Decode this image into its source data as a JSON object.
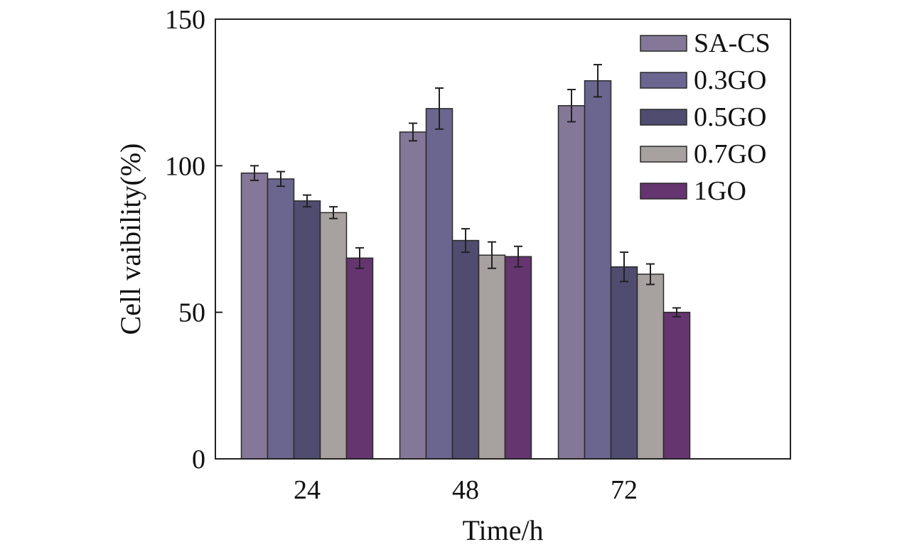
{
  "chart_data": {
    "type": "bar",
    "title": "",
    "xlabel": "Time/h",
    "ylabel": "Cell vaibility(%)",
    "categories": [
      "24",
      "48",
      "72"
    ],
    "ylim": [
      0,
      150
    ],
    "yticks": [
      "0",
      "50",
      "100",
      "150"
    ],
    "grid": false,
    "legend_position": "top-right",
    "error_bars": true,
    "series": [
      {
        "name": "SA-CS",
        "color": "#857797",
        "values": [
          97.5,
          111.5,
          120.5
        ],
        "errors": [
          2.5,
          3.0,
          5.5
        ]
      },
      {
        "name": "0.3GO",
        "color": "#6a6690",
        "values": [
          95.5,
          119.5,
          129.0
        ],
        "errors": [
          2.5,
          7.0,
          5.5
        ]
      },
      {
        "name": "0.5GO",
        "color": "#4f4c70",
        "values": [
          88.0,
          74.5,
          65.5
        ],
        "errors": [
          2.0,
          4.0,
          5.0
        ]
      },
      {
        "name": "0.7GO",
        "color": "#a7a19f",
        "values": [
          84.0,
          69.5,
          63.0
        ],
        "errors": [
          2.0,
          4.5,
          3.5
        ]
      },
      {
        "name": "1GO",
        "color": "#653570",
        "values": [
          68.5,
          69.0,
          50.0
        ],
        "errors": [
          3.5,
          3.5,
          1.5
        ]
      }
    ]
  }
}
